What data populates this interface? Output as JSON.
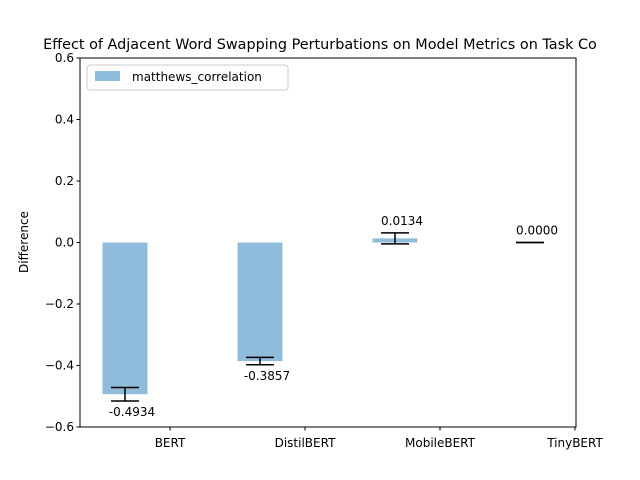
{
  "chart_data": {
    "type": "bar",
    "title": "Effect of Adjacent Word Swapping Perturbations on Model Metrics on Task Co",
    "xlabel": "",
    "ylabel": "Difference",
    "ylim": [
      -0.6,
      0.6
    ],
    "yticks": [
      -0.6,
      -0.4,
      -0.2,
      0.0,
      0.2,
      0.4,
      0.6
    ],
    "ytick_labels": [
      "−0.6",
      "−0.4",
      "−0.2",
      "0.0",
      "0.2",
      "0.4",
      "0.6"
    ],
    "grid": false,
    "legend_position": "top-left",
    "categories": [
      "BERT",
      "DistilBERT",
      "MobileBERT",
      "TinyBERT"
    ],
    "series": [
      {
        "name": "matthews_correlation",
        "color": "#8fbcdb",
        "values": [
          -0.4934,
          -0.3857,
          0.0134,
          0.0
        ],
        "errors": [
          0.022,
          0.012,
          0.018,
          0.0
        ],
        "labels": [
          "-0.4934",
          "-0.3857",
          "0.0134",
          "0.0000"
        ]
      }
    ]
  }
}
